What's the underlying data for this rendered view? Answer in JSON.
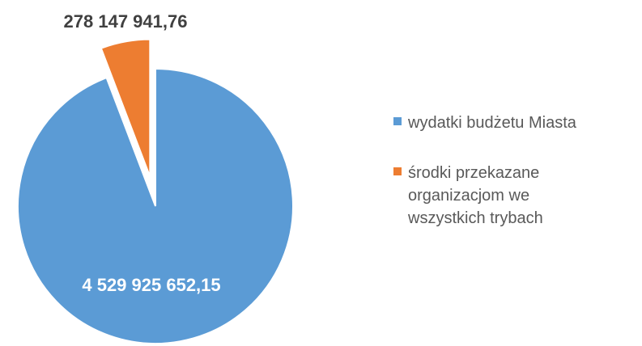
{
  "chart_data": {
    "type": "pie",
    "categories": [
      "wydatki budżetu Miasta",
      "środki przekazane organizacjom we wszystkich trybach"
    ],
    "values": [
      4529925652.15,
      278147941.76
    ],
    "value_labels": [
      "4 529 925 652,15",
      "278 147 941,76"
    ],
    "colors": [
      "#5b9bd5",
      "#ed7d31"
    ],
    "legend": "right"
  }
}
